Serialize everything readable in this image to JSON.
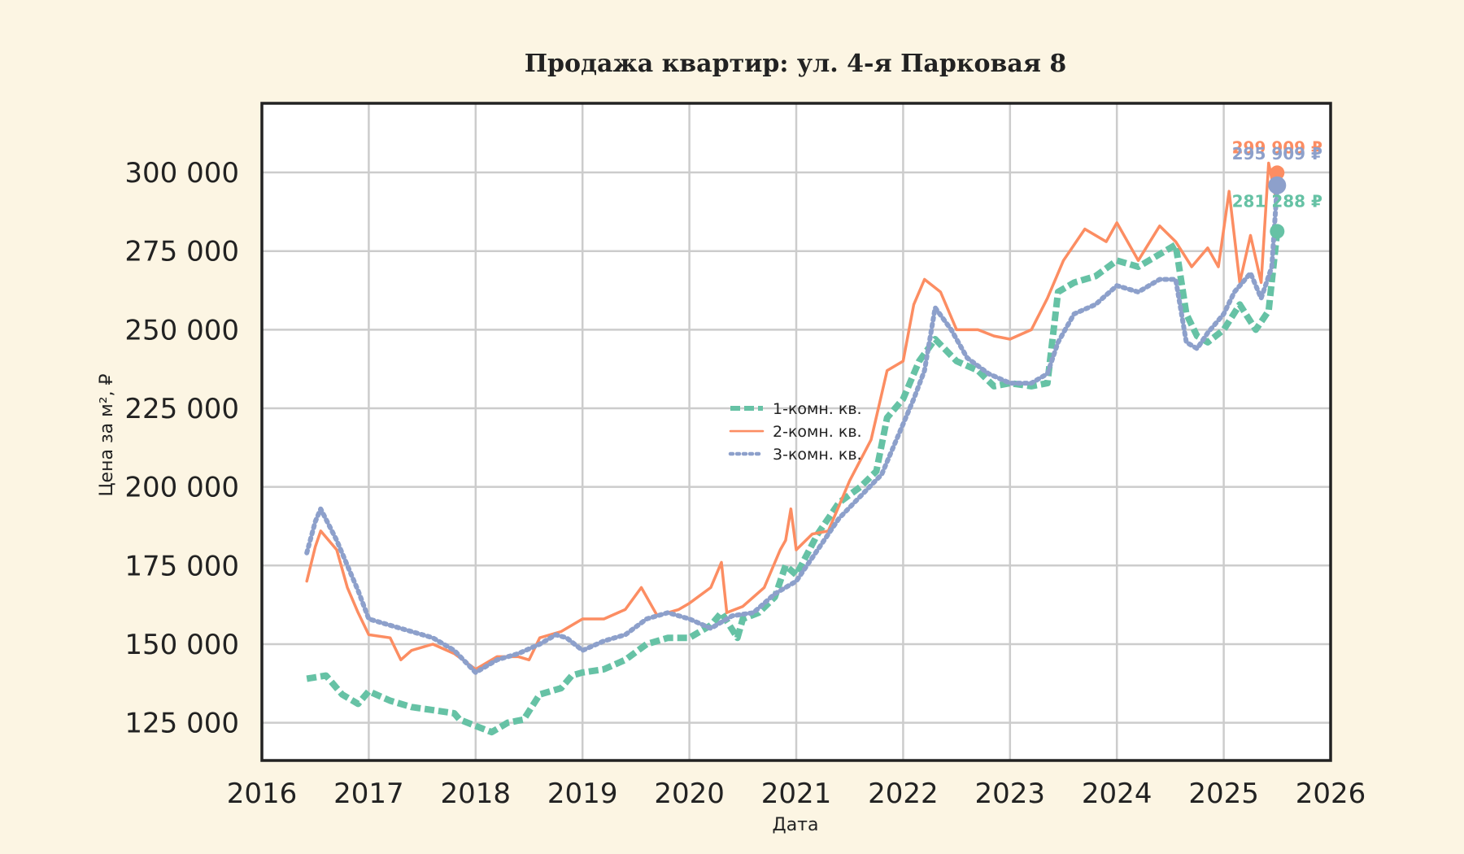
{
  "chart_data": {
    "type": "line",
    "title": "Продажа квартир: ул. 4-я Парковая 8",
    "xlabel": "Дата",
    "ylabel": "Цена за м², ₽",
    "xlim": [
      2016.0,
      2026.0
    ],
    "ylim": [
      113000,
      322000
    ],
    "x_ticks": [
      2016,
      2017,
      2018,
      2019,
      2020,
      2021,
      2022,
      2023,
      2024,
      2025,
      2026
    ],
    "x_tick_labels": [
      "2016",
      "2017",
      "2018",
      "2019",
      "2020",
      "2021",
      "2022",
      "2023",
      "2024",
      "2025",
      "2026"
    ],
    "y_ticks": [
      125000,
      150000,
      175000,
      200000,
      225000,
      250000,
      275000,
      300000
    ],
    "y_tick_labels": [
      "125 000",
      "150 000",
      "175 000",
      "200 000",
      "225 000",
      "250 000",
      "275 000",
      "300 000"
    ],
    "grid": true,
    "legend_position": "center",
    "series": [
      {
        "name": "1-комн. кв.",
        "color": "#66c2a5",
        "style": "dashed",
        "x": [
          2016.42,
          2016.6,
          2016.75,
          2016.9,
          2017.0,
          2017.2,
          2017.4,
          2017.6,
          2017.8,
          2017.85,
          2018.0,
          2018.15,
          2018.3,
          2018.45,
          2018.6,
          2018.8,
          2018.9,
          2019.0,
          2019.2,
          2019.4,
          2019.6,
          2019.8,
          2020.0,
          2020.2,
          2020.3,
          2020.45,
          2020.5,
          2020.65,
          2020.8,
          2020.9,
          2021.0,
          2021.2,
          2021.4,
          2021.6,
          2021.75,
          2021.85,
          2022.0,
          2022.15,
          2022.3,
          2022.5,
          2022.7,
          2022.85,
          2023.0,
          2023.2,
          2023.35,
          2023.45,
          2023.6,
          2023.8,
          2024.0,
          2024.2,
          2024.4,
          2024.55,
          2024.65,
          2024.75,
          2024.85,
          2025.0,
          2025.15,
          2025.3,
          2025.42,
          2025.5
        ],
        "y": [
          139000,
          140000,
          134000,
          131000,
          135000,
          132000,
          130000,
          129000,
          128000,
          126000,
          124000,
          122000,
          125000,
          126000,
          134000,
          136000,
          140000,
          141000,
          142000,
          145000,
          150000,
          152000,
          152000,
          156000,
          160000,
          152000,
          158000,
          160000,
          165000,
          175000,
          172000,
          185000,
          195000,
          200000,
          205000,
          222000,
          228000,
          240000,
          247000,
          240000,
          237000,
          232000,
          233000,
          232000,
          233000,
          262000,
          265000,
          267000,
          272000,
          270000,
          274000,
          277000,
          255000,
          248000,
          246000,
          250000,
          258000,
          250000,
          256000,
          281288
        ]
      },
      {
        "name": "2-комн. кв.",
        "color": "#fc8d62",
        "style": "solid",
        "x": [
          2016.42,
          2016.5,
          2016.55,
          2016.7,
          2016.8,
          2016.9,
          2017.0,
          2017.2,
          2017.3,
          2017.4,
          2017.6,
          2017.8,
          2018.0,
          2018.2,
          2018.4,
          2018.5,
          2018.6,
          2018.8,
          2019.0,
          2019.2,
          2019.4,
          2019.55,
          2019.7,
          2019.9,
          2020.0,
          2020.2,
          2020.3,
          2020.35,
          2020.5,
          2020.7,
          2020.85,
          2020.9,
          2020.95,
          2021.0,
          2021.15,
          2021.3,
          2021.5,
          2021.7,
          2021.85,
          2022.0,
          2022.1,
          2022.2,
          2022.35,
          2022.5,
          2022.7,
          2022.85,
          2023.0,
          2023.2,
          2023.35,
          2023.5,
          2023.7,
          2023.9,
          2024.0,
          2024.2,
          2024.4,
          2024.55,
          2024.7,
          2024.85,
          2024.95,
          2025.05,
          2025.15,
          2025.25,
          2025.35,
          2025.42,
          2025.48,
          2025.5
        ],
        "y": [
          170000,
          181000,
          186000,
          180000,
          168000,
          160000,
          153000,
          152000,
          145000,
          148000,
          150000,
          147000,
          142000,
          146000,
          146000,
          145000,
          152000,
          154000,
          158000,
          158000,
          161000,
          168000,
          159000,
          161000,
          163000,
          168000,
          176000,
          160000,
          162000,
          168000,
          180000,
          183000,
          193000,
          180000,
          185000,
          186000,
          202000,
          215000,
          237000,
          240000,
          258000,
          266000,
          262000,
          250000,
          250000,
          248000,
          247000,
          250000,
          260000,
          272000,
          282000,
          278000,
          284000,
          272000,
          283000,
          278000,
          270000,
          276000,
          270000,
          294000,
          265000,
          280000,
          265000,
          303000,
          293000,
          299909
        ]
      },
      {
        "name": "3-комн. кв.",
        "color": "#8da0cb",
        "style": "dotted",
        "x": [
          2016.42,
          2016.5,
          2016.55,
          2016.7,
          2016.8,
          2016.9,
          2017.0,
          2017.2,
          2017.4,
          2017.6,
          2017.8,
          2018.0,
          2018.2,
          2018.4,
          2018.6,
          2018.75,
          2018.85,
          2019.0,
          2019.2,
          2019.4,
          2019.6,
          2019.8,
          2020.0,
          2020.2,
          2020.4,
          2020.6,
          2020.8,
          2021.0,
          2021.2,
          2021.4,
          2021.6,
          2021.8,
          2022.0,
          2022.1,
          2022.2,
          2022.3,
          2022.45,
          2022.6,
          2022.8,
          2023.0,
          2023.2,
          2023.35,
          2023.45,
          2023.6,
          2023.8,
          2024.0,
          2024.2,
          2024.4,
          2024.55,
          2024.65,
          2024.75,
          2024.85,
          2025.0,
          2025.1,
          2025.25,
          2025.35,
          2025.45,
          2025.5
        ],
        "y": [
          179000,
          189000,
          193000,
          183000,
          175000,
          167000,
          158000,
          156000,
          154000,
          152000,
          148000,
          141000,
          145000,
          147000,
          150000,
          153000,
          152000,
          148000,
          151000,
          153000,
          158000,
          160000,
          158000,
          155000,
          159000,
          160000,
          166000,
          170000,
          180000,
          190000,
          197000,
          204000,
          220000,
          228000,
          237000,
          257000,
          250000,
          241000,
          236000,
          233000,
          233000,
          236000,
          246000,
          255000,
          258000,
          264000,
          262000,
          266000,
          266000,
          246000,
          244000,
          249000,
          255000,
          262000,
          268000,
          260000,
          270000,
          295909
        ]
      }
    ],
    "end_labels": [
      {
        "series": "2-комн. кв.",
        "text": "299 909 ₽",
        "x": 2025.5,
        "y": 299909,
        "color": "#fc8d62"
      },
      {
        "series": "3-комн. кв.",
        "text": "295 909 ₽",
        "x": 2025.5,
        "y": 295909,
        "color": "#8da0cb"
      },
      {
        "series": "1-комн. кв.",
        "text": "281 288 ₽",
        "x": 2025.5,
        "y": 281288,
        "color": "#66c2a5"
      }
    ]
  }
}
